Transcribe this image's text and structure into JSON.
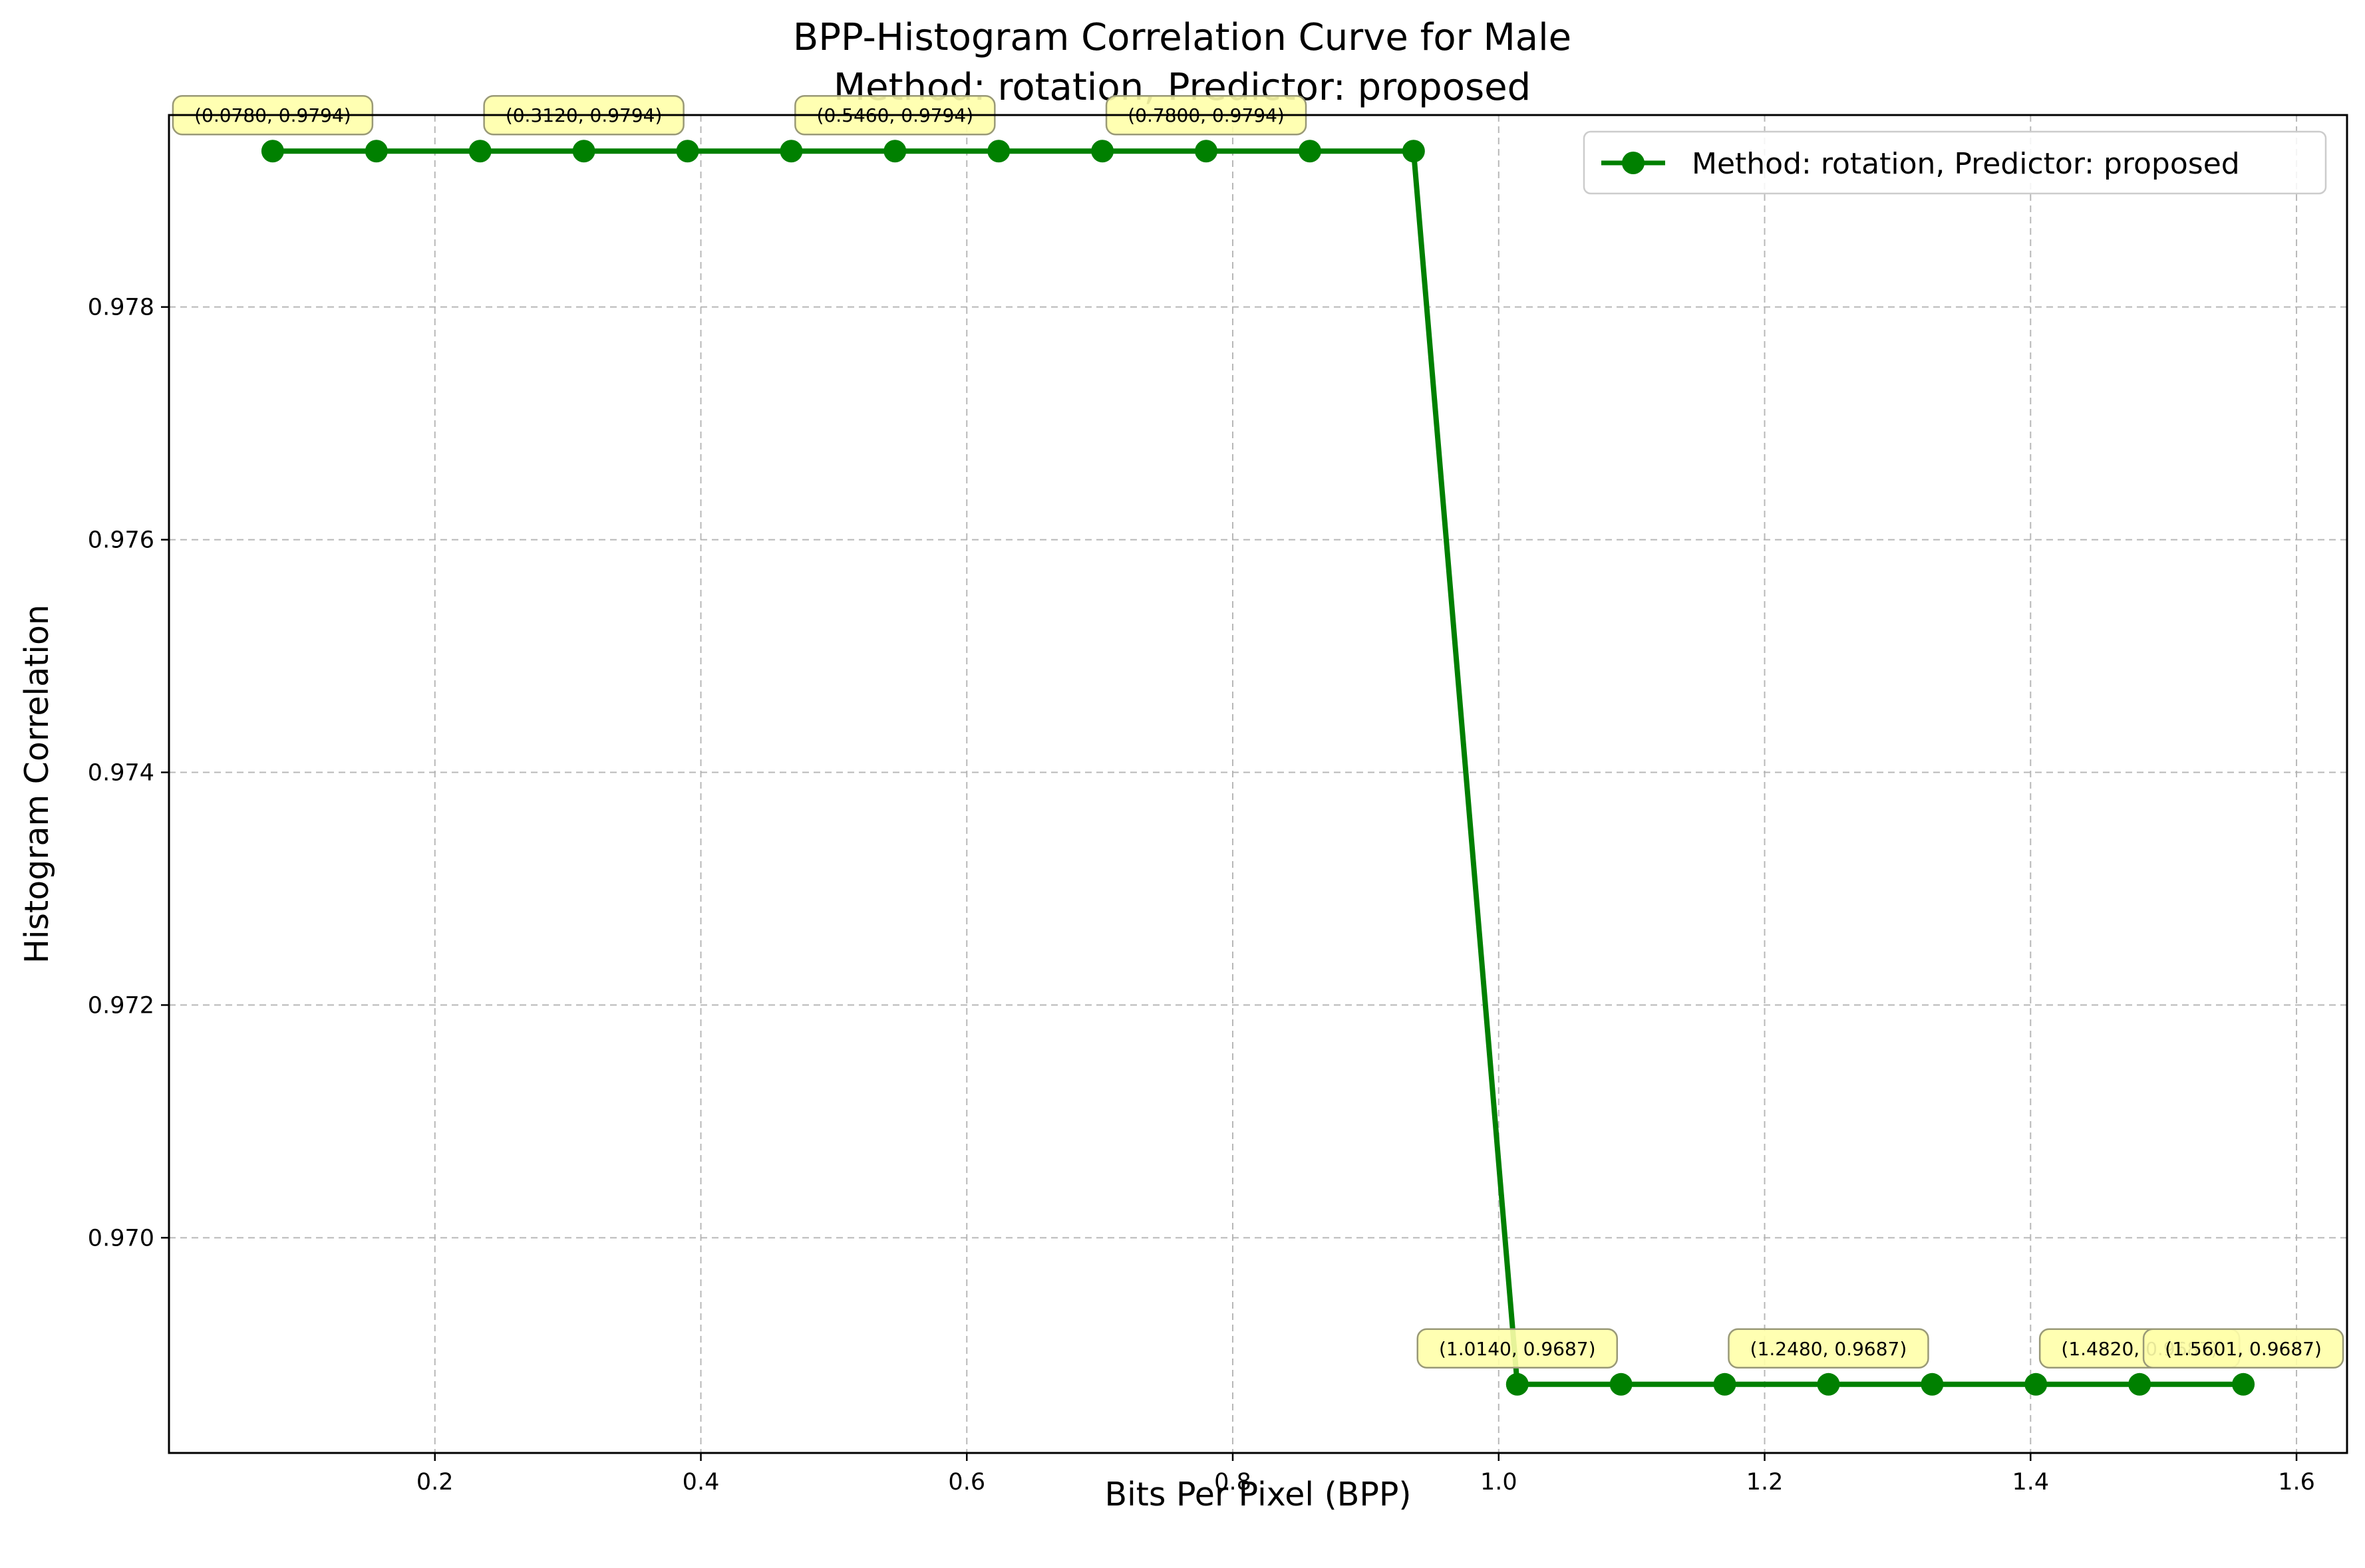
{
  "chart_data": {
    "type": "line",
    "title": "BPP-Histogram Correlation Curve for Male",
    "subtitle": "Method: rotation, Predictor: proposed",
    "xlabel": "Bits Per Pixel (BPP)",
    "ylabel": "Histogram Correlation",
    "xlim": [
      0.0,
      1.638
    ],
    "ylim": [
      0.96815,
      0.97965
    ],
    "xticks": [
      0.2,
      0.4,
      0.6,
      0.8,
      1.0,
      1.2,
      1.4,
      1.6
    ],
    "xtick_labels": [
      "0.2",
      "0.4",
      "0.6",
      "0.8",
      "1.0",
      "1.2",
      "1.4",
      "1.6"
    ],
    "yticks": [
      0.97,
      0.972,
      0.974,
      0.976,
      0.978
    ],
    "ytick_labels": [
      "0.970",
      "0.972",
      "0.974",
      "0.976",
      "0.978"
    ],
    "grid": true,
    "legend_position": "top-right",
    "line_color": "#008000",
    "annotation_color": "#ffffaa",
    "series": [
      {
        "name": "Method: rotation, Predictor: proposed",
        "x": [
          0.078,
          0.156,
          0.234,
          0.312,
          0.39,
          0.468,
          0.546,
          0.624,
          0.702,
          0.78,
          0.858,
          0.936,
          1.014,
          1.092,
          1.17,
          1.248,
          1.326,
          1.404,
          1.482,
          1.56
        ],
        "y": [
          0.97934,
          0.97934,
          0.97934,
          0.97934,
          0.97934,
          0.97934,
          0.97934,
          0.97934,
          0.97934,
          0.97934,
          0.97934,
          0.97934,
          0.96874,
          0.96874,
          0.96874,
          0.96874,
          0.96874,
          0.96874,
          0.96874,
          0.96874
        ]
      }
    ],
    "annotations": [
      {
        "x": 0.078,
        "y": 0.97934,
        "text": "(0.0780, 0.9794)"
      },
      {
        "x": 0.312,
        "y": 0.97934,
        "text": "(0.3120, 0.9794)"
      },
      {
        "x": 0.546,
        "y": 0.97934,
        "text": "(0.5460, 0.9794)"
      },
      {
        "x": 0.78,
        "y": 0.97934,
        "text": "(0.7800, 0.9794)"
      },
      {
        "x": 1.014,
        "y": 0.96874,
        "text": "(1.0140, 0.9687)"
      },
      {
        "x": 1.248,
        "y": 0.96874,
        "text": "(1.2480, 0.9687)"
      },
      {
        "x": 1.482,
        "y": 0.96874,
        "text": "(1.4820, 0.9687)"
      },
      {
        "x": 1.56,
        "y": 0.96874,
        "text": "(1.5601, 0.9687)"
      }
    ]
  }
}
